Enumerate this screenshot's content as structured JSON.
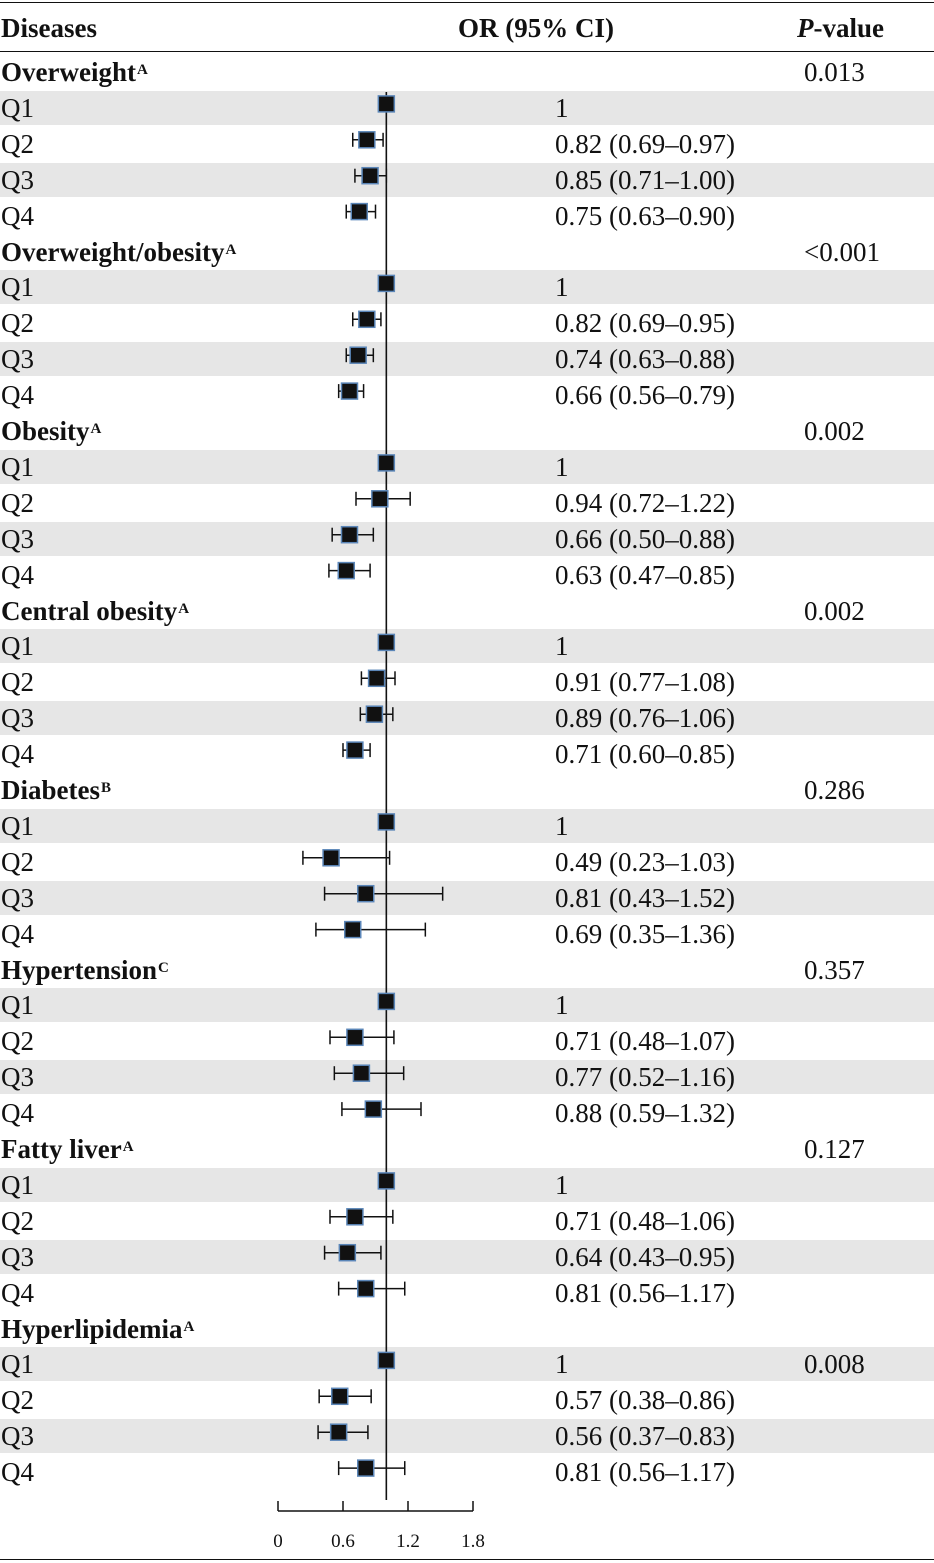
{
  "header": {
    "diseases_label": "Diseases",
    "or_label": "OR (95% CI)",
    "p_label_italic": "P",
    "p_label_rest": "-value"
  },
  "groups": [
    {
      "name": "Overweight",
      "note": "A",
      "p_value": "0.013",
      "p_row": "header",
      "rows": [
        {
          "q": "Q1",
          "or": "1",
          "est": 1,
          "lo": 1,
          "hi": 1
        },
        {
          "q": "Q2",
          "or": "0.82 (0.69–0.97)",
          "est": 0.82,
          "lo": 0.69,
          "hi": 0.97
        },
        {
          "q": "Q3",
          "or": "0.85 (0.71–1.00)",
          "est": 0.85,
          "lo": 0.71,
          "hi": 1.0
        },
        {
          "q": "Q4",
          "or": "0.75 (0.63–0.90)",
          "est": 0.75,
          "lo": 0.63,
          "hi": 0.9
        }
      ]
    },
    {
      "name": "Overweight/obesity",
      "note": "A",
      "p_value": "<0.001",
      "p_row": "header",
      "rows": [
        {
          "q": "Q1",
          "or": "1",
          "est": 1,
          "lo": 1,
          "hi": 1
        },
        {
          "q": "Q2",
          "or": "0.82 (0.69–0.95)",
          "est": 0.82,
          "lo": 0.69,
          "hi": 0.95
        },
        {
          "q": "Q3",
          "or": "0.74 (0.63–0.88)",
          "est": 0.74,
          "lo": 0.63,
          "hi": 0.88
        },
        {
          "q": "Q4",
          "or": "0.66 (0.56–0.79)",
          "est": 0.66,
          "lo": 0.56,
          "hi": 0.79
        }
      ]
    },
    {
      "name": "Obesity",
      "note": "A",
      "p_value": "0.002",
      "p_row": "header",
      "rows": [
        {
          "q": "Q1",
          "or": "1",
          "est": 1,
          "lo": 1,
          "hi": 1
        },
        {
          "q": "Q2",
          "or": "0.94 (0.72–1.22)",
          "est": 0.94,
          "lo": 0.72,
          "hi": 1.22
        },
        {
          "q": "Q3",
          "or": "0.66 (0.50–0.88)",
          "est": 0.66,
          "lo": 0.5,
          "hi": 0.88
        },
        {
          "q": "Q4",
          "or": "0.63 (0.47–0.85)",
          "est": 0.63,
          "lo": 0.47,
          "hi": 0.85
        }
      ]
    },
    {
      "name": "Central obesity",
      "note": "A",
      "p_value": "0.002",
      "p_row": "header",
      "rows": [
        {
          "q": "Q1",
          "or": "1",
          "est": 1,
          "lo": 1,
          "hi": 1
        },
        {
          "q": "Q2",
          "or": "0.91 (0.77–1.08)",
          "est": 0.91,
          "lo": 0.77,
          "hi": 1.08
        },
        {
          "q": "Q3",
          "or": "0.89 (0.76–1.06)",
          "est": 0.89,
          "lo": 0.76,
          "hi": 1.06
        },
        {
          "q": "Q4",
          "or": "0.71 (0.60–0.85)",
          "est": 0.71,
          "lo": 0.6,
          "hi": 0.85
        }
      ]
    },
    {
      "name": "Diabetes",
      "note": "B",
      "p_value": "0.286",
      "p_row": "header",
      "rows": [
        {
          "q": "Q1",
          "or": "1",
          "est": 1,
          "lo": 1,
          "hi": 1
        },
        {
          "q": "Q2",
          "or": "0.49 (0.23–1.03)",
          "est": 0.49,
          "lo": 0.23,
          "hi": 1.03
        },
        {
          "q": "Q3",
          "or": "0.81 (0.43–1.52)",
          "est": 0.81,
          "lo": 0.43,
          "hi": 1.52
        },
        {
          "q": "Q4",
          "or": "0.69 (0.35–1.36)",
          "est": 0.69,
          "lo": 0.35,
          "hi": 1.36
        }
      ]
    },
    {
      "name": "Hypertension",
      "note": "C",
      "p_value": "0.357",
      "p_row": "header",
      "rows": [
        {
          "q": "Q1",
          "or": "1",
          "est": 1,
          "lo": 1,
          "hi": 1
        },
        {
          "q": "Q2",
          "or": "0.71 (0.48–1.07)",
          "est": 0.71,
          "lo": 0.48,
          "hi": 1.07
        },
        {
          "q": "Q3",
          "or": "0.77 (0.52–1.16)",
          "est": 0.77,
          "lo": 0.52,
          "hi": 1.16
        },
        {
          "q": "Q4",
          "or": "0.88 (0.59–1.32)",
          "est": 0.88,
          "lo": 0.59,
          "hi": 1.32
        }
      ]
    },
    {
      "name": "Fatty liver",
      "note": "A",
      "p_value": "0.127",
      "p_row": "header",
      "rows": [
        {
          "q": "Q1",
          "or": "1",
          "est": 1,
          "lo": 1,
          "hi": 1
        },
        {
          "q": "Q2",
          "or": "0.71 (0.48–1.06)",
          "est": 0.71,
          "lo": 0.48,
          "hi": 1.06
        },
        {
          "q": "Q3",
          "or": "0.64 (0.43–0.95)",
          "est": 0.64,
          "lo": 0.43,
          "hi": 0.95
        },
        {
          "q": "Q4",
          "or": "0.81 (0.56–1.17)",
          "est": 0.81,
          "lo": 0.56,
          "hi": 1.17
        }
      ]
    },
    {
      "name": "Hyperlipidemia",
      "note": "A",
      "p_value": "0.008",
      "p_row": "Q1",
      "rows": [
        {
          "q": "Q1",
          "or": "1",
          "est": 1,
          "lo": 1,
          "hi": 1
        },
        {
          "q": "Q2",
          "or": "0.57 (0.38–0.86)",
          "est": 0.57,
          "lo": 0.38,
          "hi": 0.86
        },
        {
          "q": "Q3",
          "or": "0.56 (0.37–0.83)",
          "est": 0.56,
          "lo": 0.37,
          "hi": 0.83
        },
        {
          "q": "Q4",
          "or": "0.81 (0.56–1.17)",
          "est": 0.81,
          "lo": 0.56,
          "hi": 1.17
        }
      ]
    }
  ],
  "chart_data": {
    "type": "forest",
    "xlim": [
      0,
      1.8
    ],
    "xticks": [
      "0",
      "0.6",
      "1.2",
      "1.8"
    ],
    "reference_line": 1,
    "colors": {
      "marker": "#111111",
      "marker_outline": "#5b86b8",
      "band": "#e6e6e6"
    },
    "series": [
      {
        "name": "Overweight",
        "points": [
          {
            "q": "Q1",
            "est": 1,
            "lo": 1,
            "hi": 1
          },
          {
            "q": "Q2",
            "est": 0.82,
            "lo": 0.69,
            "hi": 0.97
          },
          {
            "q": "Q3",
            "est": 0.85,
            "lo": 0.71,
            "hi": 1.0
          },
          {
            "q": "Q4",
            "est": 0.75,
            "lo": 0.63,
            "hi": 0.9
          }
        ]
      },
      {
        "name": "Overweight/obesity",
        "points": [
          {
            "q": "Q1",
            "est": 1,
            "lo": 1,
            "hi": 1
          },
          {
            "q": "Q2",
            "est": 0.82,
            "lo": 0.69,
            "hi": 0.95
          },
          {
            "q": "Q3",
            "est": 0.74,
            "lo": 0.63,
            "hi": 0.88
          },
          {
            "q": "Q4",
            "est": 0.66,
            "lo": 0.56,
            "hi": 0.79
          }
        ]
      },
      {
        "name": "Obesity",
        "points": [
          {
            "q": "Q1",
            "est": 1,
            "lo": 1,
            "hi": 1
          },
          {
            "q": "Q2",
            "est": 0.94,
            "lo": 0.72,
            "hi": 1.22
          },
          {
            "q": "Q3",
            "est": 0.66,
            "lo": 0.5,
            "hi": 0.88
          },
          {
            "q": "Q4",
            "est": 0.63,
            "lo": 0.47,
            "hi": 0.85
          }
        ]
      },
      {
        "name": "Central obesity",
        "points": [
          {
            "q": "Q1",
            "est": 1,
            "lo": 1,
            "hi": 1
          },
          {
            "q": "Q2",
            "est": 0.91,
            "lo": 0.77,
            "hi": 1.08
          },
          {
            "q": "Q3",
            "est": 0.89,
            "lo": 0.76,
            "hi": 1.06
          },
          {
            "q": "Q4",
            "est": 0.71,
            "lo": 0.6,
            "hi": 0.85
          }
        ]
      },
      {
        "name": "Diabetes",
        "points": [
          {
            "q": "Q1",
            "est": 1,
            "lo": 1,
            "hi": 1
          },
          {
            "q": "Q2",
            "est": 0.49,
            "lo": 0.23,
            "hi": 1.03
          },
          {
            "q": "Q3",
            "est": 0.81,
            "lo": 0.43,
            "hi": 1.52
          },
          {
            "q": "Q4",
            "est": 0.69,
            "lo": 0.35,
            "hi": 1.36
          }
        ]
      },
      {
        "name": "Hypertension",
        "points": [
          {
            "q": "Q1",
            "est": 1,
            "lo": 1,
            "hi": 1
          },
          {
            "q": "Q2",
            "est": 0.71,
            "lo": 0.48,
            "hi": 1.07
          },
          {
            "q": "Q3",
            "est": 0.77,
            "lo": 0.52,
            "hi": 1.16
          },
          {
            "q": "Q4",
            "est": 0.88,
            "lo": 0.59,
            "hi": 1.32
          }
        ]
      },
      {
        "name": "Fatty liver",
        "points": [
          {
            "q": "Q1",
            "est": 1,
            "lo": 1,
            "hi": 1
          },
          {
            "q": "Q2",
            "est": 0.71,
            "lo": 0.48,
            "hi": 1.06
          },
          {
            "q": "Q3",
            "est": 0.64,
            "lo": 0.43,
            "hi": 0.95
          },
          {
            "q": "Q4",
            "est": 0.81,
            "lo": 0.56,
            "hi": 1.17
          }
        ]
      },
      {
        "name": "Hyperlipidemia",
        "points": [
          {
            "q": "Q1",
            "est": 1,
            "lo": 1,
            "hi": 1
          },
          {
            "q": "Q2",
            "est": 0.57,
            "lo": 0.38,
            "hi": 0.86
          },
          {
            "q": "Q3",
            "est": 0.56,
            "lo": 0.37,
            "hi": 0.83
          },
          {
            "q": "Q4",
            "est": 0.81,
            "lo": 0.56,
            "hi": 1.17
          }
        ]
      }
    ]
  }
}
